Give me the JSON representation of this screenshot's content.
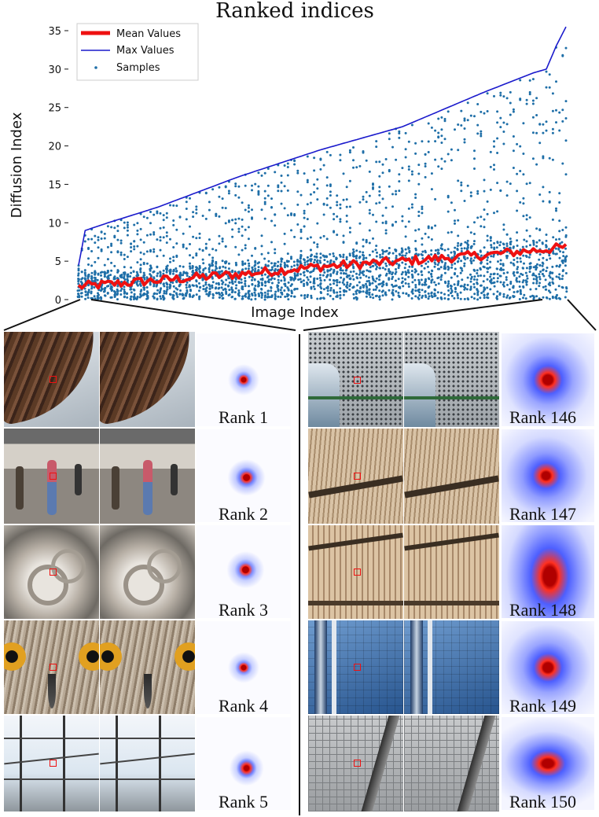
{
  "chart_data": {
    "type": "scatter",
    "title": "Ranked indices",
    "xlabel": "Image Index",
    "ylabel": "Diffusion Index",
    "ylim": [
      0,
      36
    ],
    "yticks": [
      0,
      5,
      10,
      15,
      20,
      25,
      30,
      35
    ],
    "n_images": 150,
    "grid": false,
    "legend_placement": "top-left",
    "series": [
      {
        "name": "Mean Values",
        "color": "#ee1111",
        "style": "thick-line"
      },
      {
        "name": "Max Values",
        "color": "#1a1acc",
        "style": "line"
      },
      {
        "name": "Samples",
        "color": "#1f6fa8",
        "style": "dots"
      }
    ],
    "max_values_anchors": [
      [
        1,
        4.5
      ],
      [
        3,
        9
      ],
      [
        10,
        10
      ],
      [
        25,
        12
      ],
      [
        50,
        16
      ],
      [
        75,
        19.5
      ],
      [
        100,
        22.5
      ],
      [
        125,
        27
      ],
      [
        140,
        29.5
      ],
      [
        144,
        30
      ],
      [
        147,
        33
      ],
      [
        150,
        35.5
      ]
    ],
    "mean_values_anchors": [
      [
        1,
        1.7
      ],
      [
        25,
        2.5
      ],
      [
        50,
        3.3
      ],
      [
        75,
        4.3
      ],
      [
        100,
        5.0
      ],
      [
        125,
        5.8
      ],
      [
        150,
        6.8
      ]
    ]
  },
  "panels": {
    "left": [
      {
        "label": "Rank 1",
        "scene": "bird-wing"
      },
      {
        "label": "Rank 2",
        "scene": "crowd-street"
      },
      {
        "label": "Rank 3",
        "scene": "stone-sculpture"
      },
      {
        "label": "Rank 4",
        "scene": "owl-face"
      },
      {
        "label": "Rank 5",
        "scene": "power-lines"
      }
    ],
    "right": [
      {
        "label": "Rank 146",
        "scene": "perforated-metal"
      },
      {
        "label": "Rank 147",
        "scene": "curved-facade"
      },
      {
        "label": "Rank 148",
        "scene": "wood-slats"
      },
      {
        "label": "Rank 149",
        "scene": "glass-building"
      },
      {
        "label": "Rank 150",
        "scene": "roof-grid"
      }
    ]
  }
}
